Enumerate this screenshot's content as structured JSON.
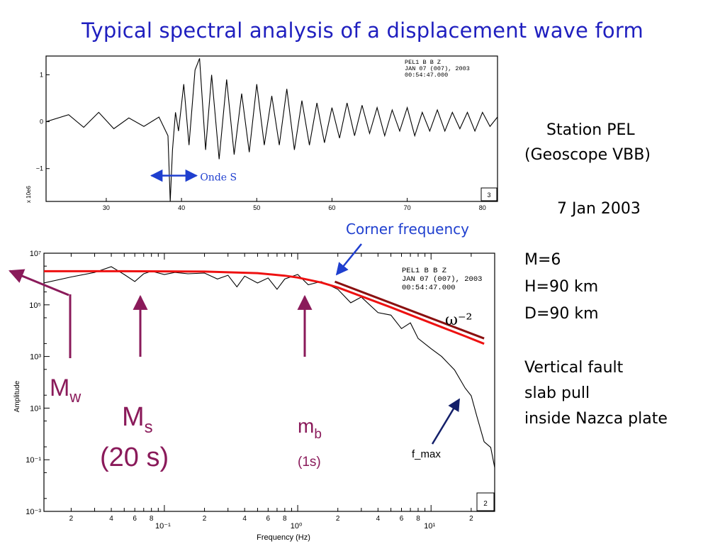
{
  "slide": {
    "title": "Typical spectral analysis of a displacement wave form"
  },
  "info": {
    "station": "Station PEL",
    "network": "(Geoscope VBB)",
    "date": "7 Jan 2003",
    "magnitude": "M=6",
    "depth": "H=90 km",
    "distance": "D=90 km",
    "mechanism": [
      "Vertical fault",
      "slab pull",
      "inside Nazca plate"
    ]
  },
  "colors": {
    "title": "#1f1fbf",
    "annotation_blue": "#1f3fcf",
    "arrow_magenta": "#8a1a5a",
    "model_curve": "#ee1111",
    "asymptote": "#8a1010",
    "trace": "#000000"
  },
  "chart_data": [
    {
      "type": "line",
      "header": [
        "PEL1  B  B  Z",
        "JAN 07 (007), 2003",
        "00:54:47.000"
      ],
      "ylabel": "x 10e6",
      "xticks": [
        "30",
        "40",
        "50",
        "60",
        "70",
        "80"
      ],
      "yticks": [
        "1",
        "0",
        "−1"
      ],
      "xlim": [
        22,
        82
      ],
      "ylim": [
        -1.7,
        1.4
      ],
      "panel_number": "3",
      "annotation": "Onde S",
      "annotation_span": [
        36,
        42
      ],
      "series": [
        {
          "x": [
            22,
            25,
            27,
            29,
            31,
            33,
            35,
            37,
            38.2,
            38.5,
            38.8,
            39.2,
            39.6,
            40.3,
            41,
            41.8,
            42.4,
            43.2,
            44,
            45,
            46,
            47,
            48,
            49,
            50,
            51,
            52,
            53,
            54,
            55,
            56,
            57,
            58,
            59,
            60,
            61,
            62,
            63,
            64,
            65,
            66,
            67,
            68,
            69,
            70,
            71,
            72,
            73,
            74,
            75,
            76,
            77,
            78,
            79,
            80,
            81,
            82
          ],
          "y": [
            0,
            0.15,
            -0.12,
            0.2,
            -0.15,
            0.08,
            -0.1,
            0.1,
            -0.3,
            -1.7,
            -0.6,
            0.2,
            -0.2,
            0.8,
            -0.5,
            1.1,
            1.35,
            -0.6,
            1.0,
            -0.8,
            0.9,
            -0.7,
            0.6,
            -0.65,
            0.8,
            -0.5,
            0.55,
            -0.5,
            0.7,
            -0.6,
            0.45,
            -0.5,
            0.4,
            -0.45,
            0.3,
            -0.35,
            0.4,
            -0.3,
            0.35,
            -0.25,
            0.3,
            -0.3,
            0.25,
            -0.2,
            0.3,
            -0.3,
            0.2,
            -0.2,
            0.25,
            -0.2,
            0.2,
            -0.15,
            0.2,
            -0.2,
            0.2,
            -0.1,
            0.1
          ]
        }
      ]
    },
    {
      "type": "line",
      "header": [
        "PEL1  B  B  Z",
        "JAN 07 (007), 2003",
        "00:54:47.000"
      ],
      "xlabel": "Frequency  (Hz)",
      "ylabel": "Amplitude",
      "xscale": "log",
      "yscale": "log",
      "xlim": [
        0.0125,
        30
      ],
      "ylim": [
        0.001,
        10000000
      ],
      "xticks_major": [
        "10⁻¹",
        "10⁰",
        "10¹"
      ],
      "yticks": [
        "10⁷",
        "10⁵",
        "10³",
        "10¹",
        "10⁻¹",
        "10⁻³"
      ],
      "panel_number": "2",
      "asymptote_label": "ω⁻²",
      "series": [
        {
          "name": "spectrum",
          "x": [
            0.0125,
            0.02,
            0.03,
            0.04,
            0.05,
            0.06,
            0.07,
            0.08,
            0.1,
            0.12,
            0.15,
            0.2,
            0.25,
            0.3,
            0.35,
            0.4,
            0.5,
            0.6,
            0.7,
            0.8,
            1,
            1.2,
            1.5,
            2,
            2.5,
            3,
            4,
            5,
            6,
            7,
            8,
            10,
            12,
            15,
            18,
            20,
            22,
            25,
            28,
            30
          ],
          "y": [
            700000,
            1200000,
            1800000,
            3000000,
            1500000,
            800000,
            1600000,
            2000000,
            1500000,
            1800000,
            1600000,
            1700000,
            1000000,
            1400000,
            500000,
            1300000,
            700000,
            1100000,
            400000,
            1000000,
            1500000,
            600000,
            800000,
            400000,
            120000,
            200000,
            50000,
            40000,
            12000,
            20000,
            5000,
            2000,
            1000,
            300,
            60,
            30,
            5,
            0.5,
            0.3,
            0.05
          ]
        },
        {
          "name": "model",
          "x": [
            0.0125,
            0.05,
            0.1,
            0.2,
            0.5,
            0.8,
            1.0,
            1.5,
            2.0,
            3.0,
            5.0,
            8.0,
            12.0,
            18.0,
            25.0
          ],
          "y": [
            2000000,
            2000000,
            1980000,
            1940000,
            1690000,
            1350000,
            1140000,
            735000,
            470000,
            215000,
            80000,
            31000,
            13700,
            6100,
            3100
          ]
        },
        {
          "name": "omega^-2 asymptote",
          "x": [
            1.9,
            25
          ],
          "y": [
            790000,
            5000
          ]
        }
      ],
      "annotations": {
        "corner_frequency": "Corner frequency",
        "f_max": "f_max",
        "mw": {
          "main": "M",
          "sub": "w"
        },
        "ms": {
          "main": "M",
          "sub": "s",
          "period": "(20 s)"
        },
        "mb": {
          "main": "m",
          "sub": "b",
          "period": "(1s)"
        }
      }
    }
  ]
}
